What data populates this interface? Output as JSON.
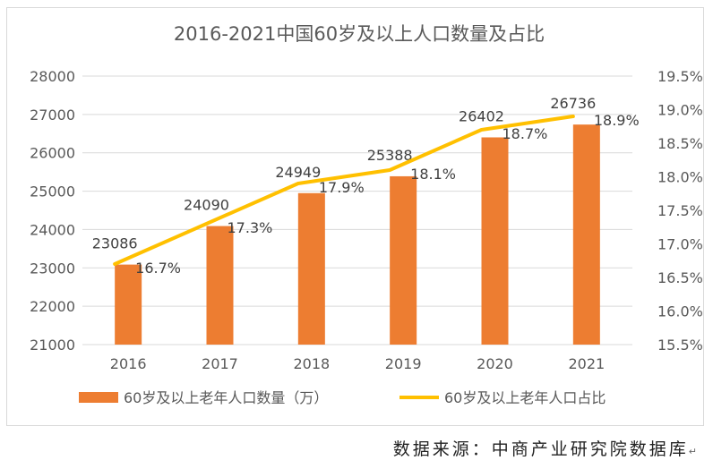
{
  "chart_data": {
    "type": "bar",
    "title": "2016-2021中国60岁及以上人口数量及占比",
    "categories": [
      "2016",
      "2017",
      "2018",
      "2019",
      "2020",
      "2021"
    ],
    "series": [
      {
        "name": "60岁及以上老年人口数量（万）",
        "type": "bar",
        "values": [
          23086,
          24090,
          24949,
          25388,
          26402,
          26736
        ],
        "labels": [
          "23086",
          "24090",
          "24949",
          "25388",
          "26402",
          "26736"
        ]
      },
      {
        "name": "60岁及以上老年人口占比",
        "type": "line",
        "axis": "right",
        "values": [
          16.7,
          17.3,
          17.9,
          18.1,
          18.7,
          18.9
        ],
        "labels": [
          "16.7%",
          "17.3%",
          "17.9%",
          "18.1%",
          "18.7%",
          "18.9%"
        ]
      }
    ],
    "ylim": [
      21000,
      28000
    ],
    "y_ticks": [
      "21000",
      "22000",
      "23000",
      "24000",
      "25000",
      "26000",
      "27000",
      "28000"
    ],
    "y2lim": [
      15.5,
      19.5
    ],
    "y2_ticks": [
      "15.5%",
      "16.0%",
      "16.5%",
      "17.0%",
      "17.5%",
      "18.0%",
      "18.5%",
      "19.0%",
      "19.5%"
    ],
    "grid": true,
    "legend": "bottom"
  },
  "colors": {
    "bar": "#ed7d31",
    "line": "#ffc000",
    "grid": "#d9d9d9",
    "text": "#595959"
  },
  "source": {
    "text": "数据来源：中商产业研究院数据库",
    "mark": "↵"
  }
}
